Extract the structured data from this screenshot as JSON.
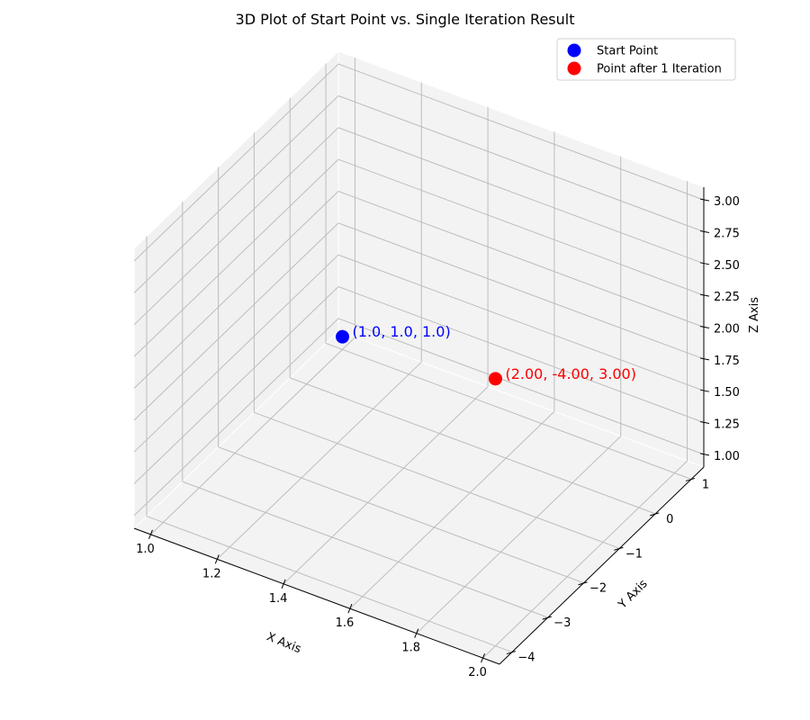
{
  "chart_data": {
    "type": "scatter",
    "title": "3D Plot of Start Point vs. Single Iteration Result",
    "xlabel": "X Axis",
    "ylabel": "Y Axis",
    "zlabel": "Z Axis",
    "grid": true,
    "legend_position": "top-right",
    "xlim": [
      0.95,
      2.05
    ],
    "ylim": [
      -4.35,
      1.35
    ],
    "zlim": [
      0.9,
      3.1
    ],
    "x_ticks": [
      "1.0",
      "1.2",
      "1.4",
      "1.6",
      "1.8",
      "2.0"
    ],
    "y_ticks": [
      "1",
      "0",
      "−1",
      "−2",
      "−3",
      "−4"
    ],
    "z_ticks": [
      "1.00",
      "1.25",
      "1.50",
      "1.75",
      "2.00",
      "2.25",
      "2.50",
      "2.75",
      "3.00"
    ],
    "series": [
      {
        "name": "Start Point",
        "color": "#0000ff",
        "points": [
          {
            "x": 1.0,
            "y": 1.0,
            "z": 1.0
          }
        ],
        "annotation": "(1.0, 1.0, 1.0)"
      },
      {
        "name": "Point after 1 Iteration",
        "color": "#ff0000",
        "points": [
          {
            "x": 2.0,
            "y": -4.0,
            "z": 3.0
          }
        ],
        "annotation": "(2.00, -4.00, 3.00)"
      }
    ]
  }
}
